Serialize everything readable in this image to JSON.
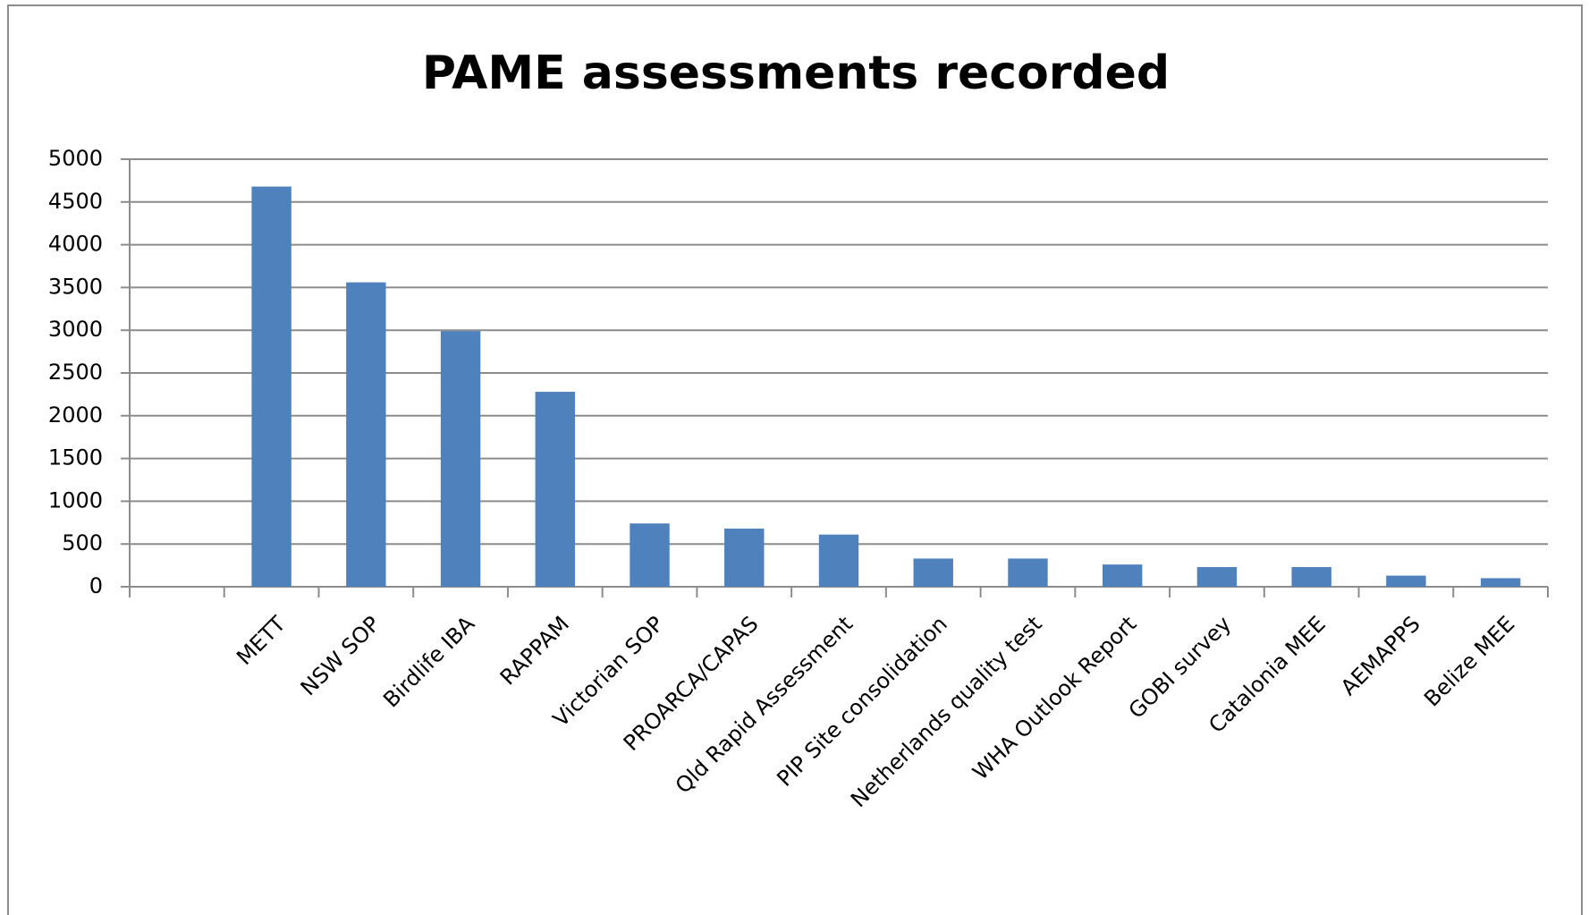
{
  "chart_data": {
    "type": "bar",
    "title": "PAME assessments recorded",
    "categories": [
      null,
      "METT",
      "NSW SOP",
      "Birdlife IBA",
      "RAPPAM",
      "Victorian SOP",
      "PROARCA/CAPAS",
      "Qld Rapid Assessment",
      "PIP Site consolidation",
      "Netherlands quality test",
      "WHA Outlook Report",
      "GOBI survey",
      "Catalonia MEE",
      "AEMAPPS",
      "Belize MEE"
    ],
    "values": [
      null,
      4680,
      3560,
      2990,
      2280,
      740,
      680,
      610,
      330,
      330,
      260,
      230,
      230,
      130,
      100
    ],
    "color": "#4f81bd",
    "ylim": [
      0,
      5000
    ],
    "yticks": [
      0,
      500,
      1000,
      1500,
      2000,
      2500,
      3000,
      3500,
      4000,
      4500,
      5000
    ],
    "grid": true
  }
}
